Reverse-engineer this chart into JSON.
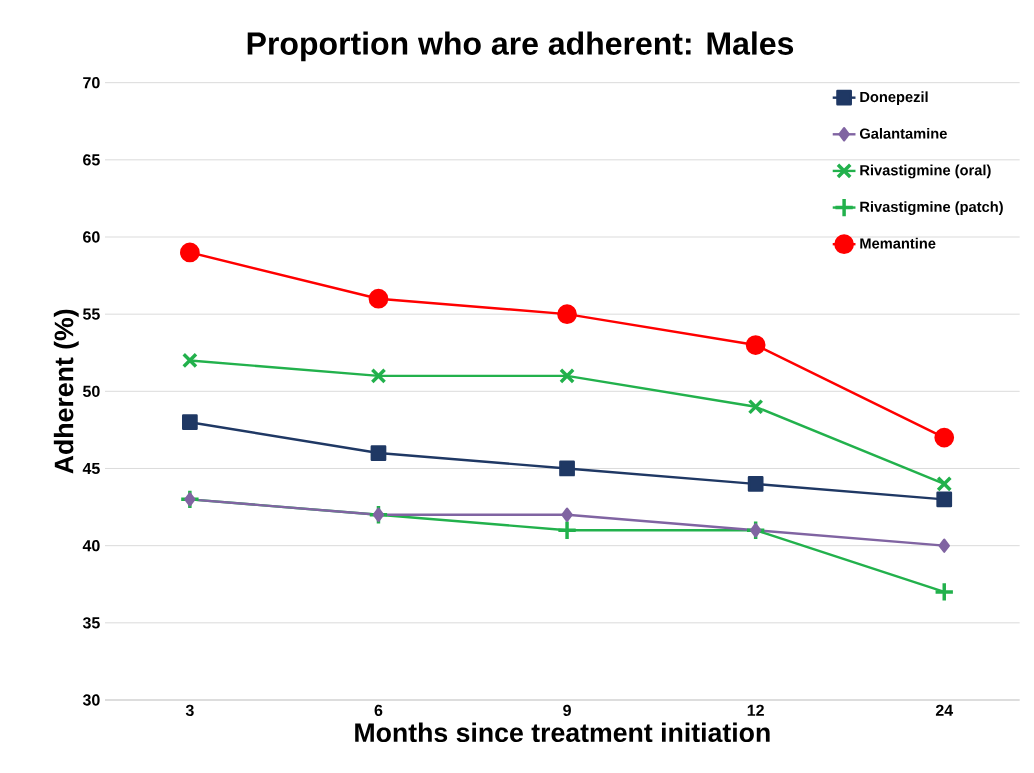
{
  "chart_data": {
    "type": "line",
    "title": "Proportion who are adherent: Males",
    "xlabel": "Months since treatment initiation",
    "ylabel": "Adherent (%)",
    "categories": [
      "3",
      "6",
      "9",
      "12",
      "24"
    ],
    "series": [
      {
        "name": "Donepezil",
        "color": "#1f3864",
        "marker": "square",
        "values": [
          48,
          46,
          45,
          44,
          43
        ]
      },
      {
        "name": "Galantamine",
        "color": "#8064a2",
        "marker": "diamond",
        "values": [
          43,
          42,
          42,
          41,
          40
        ]
      },
      {
        "name": "Rivastigmine (oral)",
        "color": "#22b14c",
        "marker": "cross",
        "values": [
          52,
          51,
          51,
          49,
          44
        ]
      },
      {
        "name": "Rivastigmine (patch)",
        "color": "#22b14c",
        "marker": "plus",
        "values": [
          43,
          42,
          41,
          41,
          37
        ]
      },
      {
        "name": "Memantine",
        "color": "#ff0000",
        "marker": "circle",
        "values": [
          59,
          56,
          55,
          53,
          47
        ]
      }
    ],
    "ylim": [
      30,
      70
    ],
    "yticks": [
      30,
      35,
      40,
      45,
      50,
      55,
      60,
      65,
      70
    ],
    "grid": "y",
    "legend": "top right",
    "line_style": "solid"
  }
}
